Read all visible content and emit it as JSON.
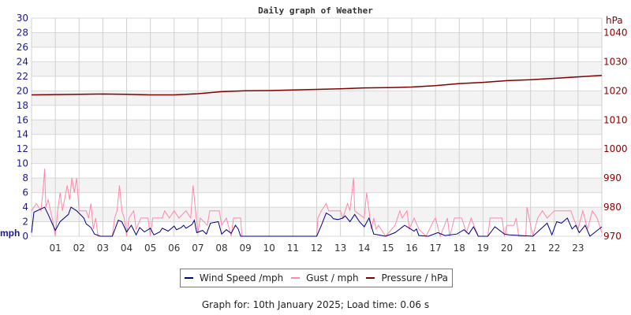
{
  "chart_data": {
    "type": "line",
    "title": "Daily graph of Weather",
    "left_axis": {
      "label": "mph",
      "range": [
        0,
        30
      ],
      "ticks": [
        "0",
        "2",
        "4",
        "6",
        "8",
        "10",
        "12",
        "14",
        "16",
        "18",
        "20",
        "22",
        "24",
        "26",
        "28",
        "30"
      ]
    },
    "right_axis": {
      "label": "hPa",
      "range": [
        970,
        1045
      ],
      "ticks": [
        "970",
        "980",
        "990",
        "1000",
        "1010",
        "1020",
        "1030",
        "1040"
      ]
    },
    "x_axis": {
      "range": [
        0,
        24
      ],
      "ticks": [
        "01",
        "02",
        "03",
        "04",
        "05",
        "06",
        "07",
        "08",
        "09",
        "10",
        "11",
        "12",
        "13",
        "14",
        "15",
        "16",
        "17",
        "18",
        "19",
        "20",
        "21",
        "22",
        "23"
      ]
    },
    "grid": true,
    "legend_placement": "bottom",
    "series": [
      {
        "name": "Wind Speed /mph",
        "color": "#000080",
        "axis": "left",
        "x": [
          0,
          0.1,
          0.55,
          0.7,
          1,
          1.2,
          1.55,
          1.66,
          1.9,
          2.2,
          2.3,
          2.5,
          2.65,
          2.9,
          3.4,
          3.65,
          3.8,
          4,
          4.2,
          4.4,
          4.55,
          4.75,
          5,
          5.15,
          5.4,
          5.5,
          5.75,
          6,
          6.1,
          6.3,
          6.4,
          6.5,
          6.75,
          6.85,
          6.95,
          7.2,
          7.36,
          7.53,
          7.86,
          8,
          8.2,
          8.4,
          8.58,
          8.7,
          8.8,
          12,
          12.2,
          12.4,
          12.6,
          12.7,
          12.9,
          13.1,
          13.2,
          13.4,
          13.6,
          13.8,
          14,
          14.2,
          14.4,
          14.6,
          14.9,
          15.3,
          15.7,
          16.1,
          16.2,
          16.3,
          16.7,
          17.1,
          17.4,
          17.9,
          18.2,
          18.4,
          18.6,
          18.8,
          19.2,
          19.5,
          19.9,
          20.1,
          21.1,
          21.7,
          21.9,
          22.1,
          22.3,
          22.55,
          22.75,
          22.9,
          23.05,
          23.3,
          23.5,
          24
        ],
        "y": [
          0.5,
          3.3,
          4,
          3,
          0.8,
          2,
          3,
          4,
          3.5,
          2.5,
          1.7,
          1.2,
          0.3,
          0,
          0,
          2.2,
          2,
          0.6,
          1.5,
          0.2,
          1.2,
          0.6,
          1.1,
          0.2,
          0.6,
          1.1,
          0.7,
          1.4,
          0.9,
          1.2,
          1.5,
          1.1,
          1.6,
          2.2,
          0.5,
          0.8,
          0.3,
          1.8,
          2,
          0.3,
          0.9,
          0.4,
          1.5,
          1,
          0,
          0,
          1.5,
          3.2,
          2.8,
          2.4,
          2.3,
          2.5,
          2.8,
          2,
          3,
          2,
          1.3,
          2.5,
          0.3,
          0.2,
          0,
          0.5,
          1.5,
          0.7,
          1,
          0.1,
          0,
          0.5,
          0.1,
          0.3,
          0.9,
          0.3,
          1.3,
          0,
          0,
          1.3,
          0.3,
          0.2,
          0,
          1.8,
          0.2,
          2,
          1.8,
          2.5,
          1,
          1.5,
          0.5,
          1.5,
          0,
          1.3
        ]
      },
      {
        "name": "Gust / mph",
        "color": "#ff88aa",
        "axis": "left",
        "x": [
          0,
          0.2,
          0.4,
          0.5,
          0.55,
          0.6,
          0.7,
          0.8,
          0.9,
          1,
          1.1,
          1.2,
          1.3,
          1.5,
          1.6,
          1.7,
          1.8,
          1.9,
          2,
          2.3,
          2.4,
          2.5,
          2.6,
          2.7,
          2.8,
          3.4,
          3.5,
          3.6,
          3.7,
          3.8,
          3.9,
          4,
          4.1,
          4.3,
          4.4,
          4.6,
          4.9,
          5,
          5.1,
          5.5,
          5.6,
          5.8,
          6,
          6.2,
          6.5,
          6.7,
          6.8,
          6.9,
          7,
          7.1,
          7.4,
          7.5,
          7.9,
          8,
          8.2,
          8.4,
          8.5,
          8.8,
          8.85,
          12,
          12.05,
          12.2,
          12.4,
          12.5,
          13,
          13.1,
          13.3,
          13.4,
          13.55,
          13.6,
          14,
          14.1,
          14.2,
          14.3,
          14.4,
          14.5,
          14.6,
          14.9,
          15.3,
          15.5,
          15.6,
          15.8,
          15.9,
          16.1,
          16.3,
          16.6,
          16.9,
          17,
          17.2,
          17.5,
          17.6,
          17.8,
          18.1,
          18.3,
          18.5,
          18.8,
          19.2,
          19.3,
          19.8,
          19.9,
          20,
          20.3,
          20.4,
          20.5,
          20.8,
          20.85,
          21.1,
          21.3,
          21.5,
          21.7,
          22,
          22.7,
          22.8,
          23,
          23.2,
          23.4,
          23.6,
          23.8,
          24
        ],
        "y": [
          3.5,
          4.5,
          3.5,
          7,
          9.3,
          4,
          5,
          3.5,
          2,
          0,
          3.5,
          6,
          3.5,
          7,
          5,
          8,
          6,
          8,
          3.5,
          3.5,
          2.5,
          4.5,
          1,
          2.5,
          0,
          0,
          2.5,
          3.5,
          7,
          3.5,
          2.5,
          0,
          2.5,
          3.5,
          1,
          2.5,
          2.5,
          0,
          2.5,
          2.5,
          3.5,
          2.5,
          3.5,
          2.5,
          3.5,
          2.5,
          7,
          3.5,
          0.5,
          2.5,
          1.5,
          3.5,
          3.5,
          1.5,
          2.5,
          0,
          2.5,
          2.5,
          0,
          0,
          2.5,
          3.5,
          4.5,
          3.5,
          3.5,
          2.5,
          4.5,
          3.5,
          8,
          3.5,
          2.5,
          6,
          3.5,
          1,
          2.5,
          1,
          1.5,
          0,
          1.5,
          3.5,
          2.5,
          3.5,
          1,
          2.5,
          1,
          0,
          2,
          2.5,
          0,
          2.5,
          0,
          2.5,
          2.5,
          0.5,
          2.5,
          0,
          0,
          2.5,
          2.5,
          0,
          1.5,
          1.5,
          2.5,
          0,
          0,
          4,
          0,
          2.5,
          3.5,
          2.5,
          3.5,
          3.5,
          2.5,
          1,
          3.5,
          1,
          3.5,
          2.5,
          0.5
        ]
      },
      {
        "name": "Pressure / hPa",
        "color": "#800000",
        "axis": "right",
        "x": [
          0,
          1,
          2,
          3,
          4,
          5,
          6,
          7,
          8,
          9,
          10,
          11,
          12,
          13,
          14,
          15,
          16,
          17,
          18,
          19,
          20,
          21,
          22,
          23,
          24
        ],
        "y": [
          1018.6,
          1018.7,
          1018.8,
          1018.9,
          1018.8,
          1018.6,
          1018.6,
          1019.0,
          1019.7,
          1020.0,
          1020.1,
          1020.3,
          1020.5,
          1020.7,
          1021.0,
          1021.1,
          1021.3,
          1021.8,
          1022.5,
          1022.9,
          1023.5,
          1023.8,
          1024.3,
          1024.8,
          1025.3
        ]
      }
    ],
    "footer": "Graph for: 10th January 2025; Load time: 0.06 s"
  }
}
